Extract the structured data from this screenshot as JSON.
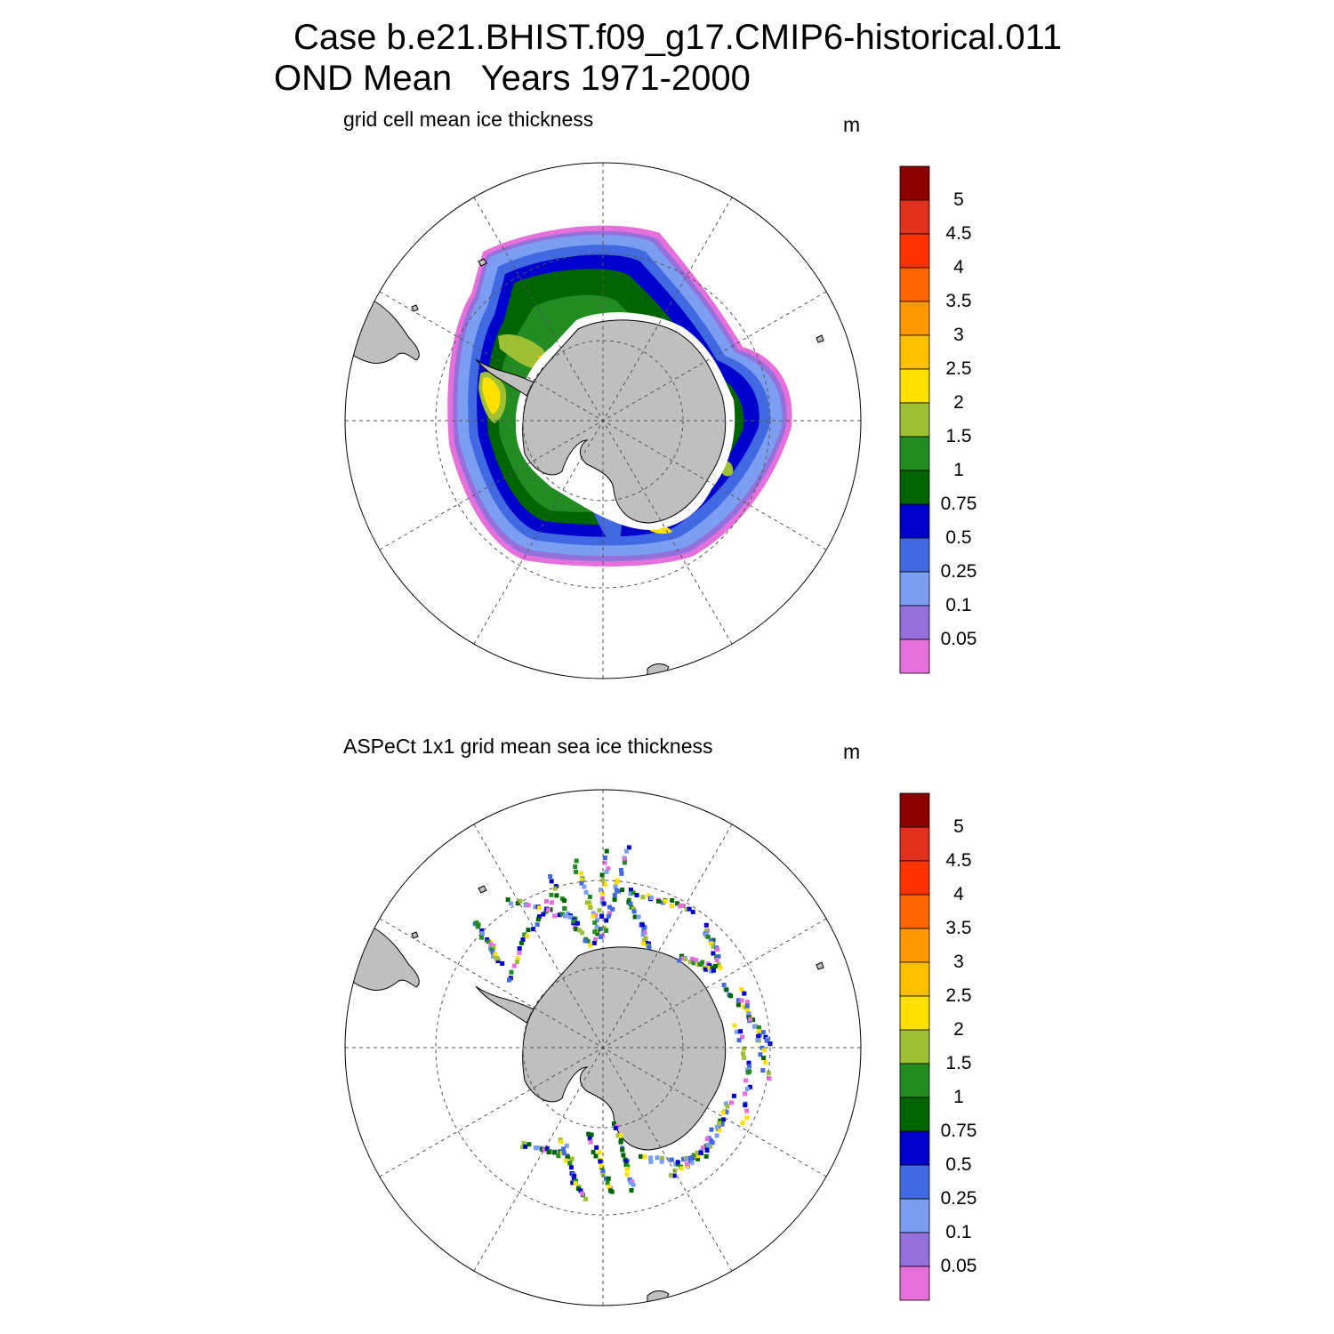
{
  "title": {
    "line1": "Case b.e21.BHIST.f09_g17.CMIP6-historical.011",
    "line2": "OND Mean   Years 1971-2000"
  },
  "panels": [
    {
      "id": "model",
      "label": "grid cell mean ice thickness",
      "units": "m"
    },
    {
      "id": "obs",
      "label": "ASPeCt 1x1 grid mean sea ice thickness",
      "units": "m"
    }
  ],
  "colorbar": {
    "labels": [
      "5",
      "4.5",
      "4",
      "3.5",
      "3",
      "2.5",
      "2",
      "1.5",
      "1",
      "0.75",
      "0.5",
      "0.25",
      "0.1",
      "0.05"
    ],
    "colors": [
      "#8b0000",
      "#e0301e",
      "#ff3300",
      "#ff6600",
      "#ff9900",
      "#ffc000",
      "#ffe000",
      "#9dc034",
      "#228b22",
      "#006400",
      "#0000cd",
      "#4169e1",
      "#7b9ef0",
      "#9370db",
      "#e670db"
    ]
  },
  "styles": {
    "land": "#bfbfbf",
    "grid": "#555555"
  }
}
